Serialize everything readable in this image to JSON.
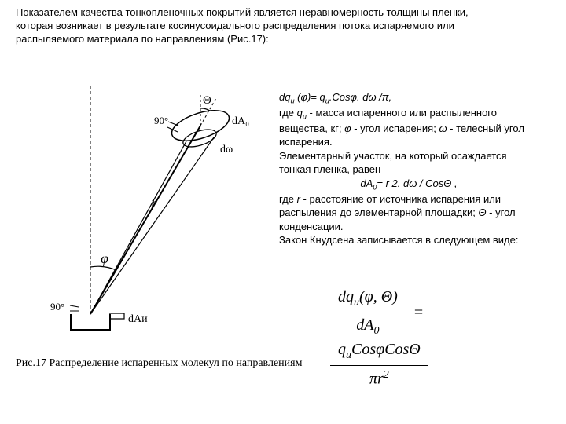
{
  "intro": "Показателем качества тонкопленочных покрытий является неравномерность толщины пленки, которая возникает в результате косинусоидального распределения потока испаряемого или распыляемого материала по направлениям (Рис.17):",
  "text_block": {
    "eq1_html": "dq<sub>и</sub> (φ)= q<sub>и</sub>.Cosφ. dω /π,",
    "para1_html": "где <i>q<sub>и</sub></i> - масса испаренного или распыленного вещества, кг; <i>φ</i> - угол испарения; <i>ω</i> - телесный угол испарения.",
    "para2": "Элементарный участок, на который осаждается тонкая пленка, равен",
    "eq2_html": "dА<sub>0</sub>= r 2. dω / CosΘ ,",
    "para3_html": "где <i>r</i> - расстояние от источника испарения или распыления до элементарной площадки; <i>Θ</i> - угол конденсации.",
    "para4": "Закон Кнудсена записывается в следующем виде:"
  },
  "big_formula": {
    "left_num_html": "dq<sub>и</sub>(φ, Θ)",
    "left_den_html": "dA<sub>0</sub>",
    "right_num_html": "q<sub>и</sub>CosφCosΘ",
    "right_den_html": "πr<sup>2</sup>"
  },
  "figure": {
    "angle_90_top": "90°",
    "angle_90_bottom": "90°",
    "theta": "Θ",
    "dA0": "dA₀",
    "domega": "dω",
    "r": "r",
    "phi": "φ",
    "dAu": "dAи",
    "stroke_color": "#000000",
    "fill_bg": "#ffffff"
  },
  "caption": "Рис.17 Распределение испаренных молекул по направлениям",
  "colors": {
    "text": "#000000",
    "background": "#ffffff"
  }
}
